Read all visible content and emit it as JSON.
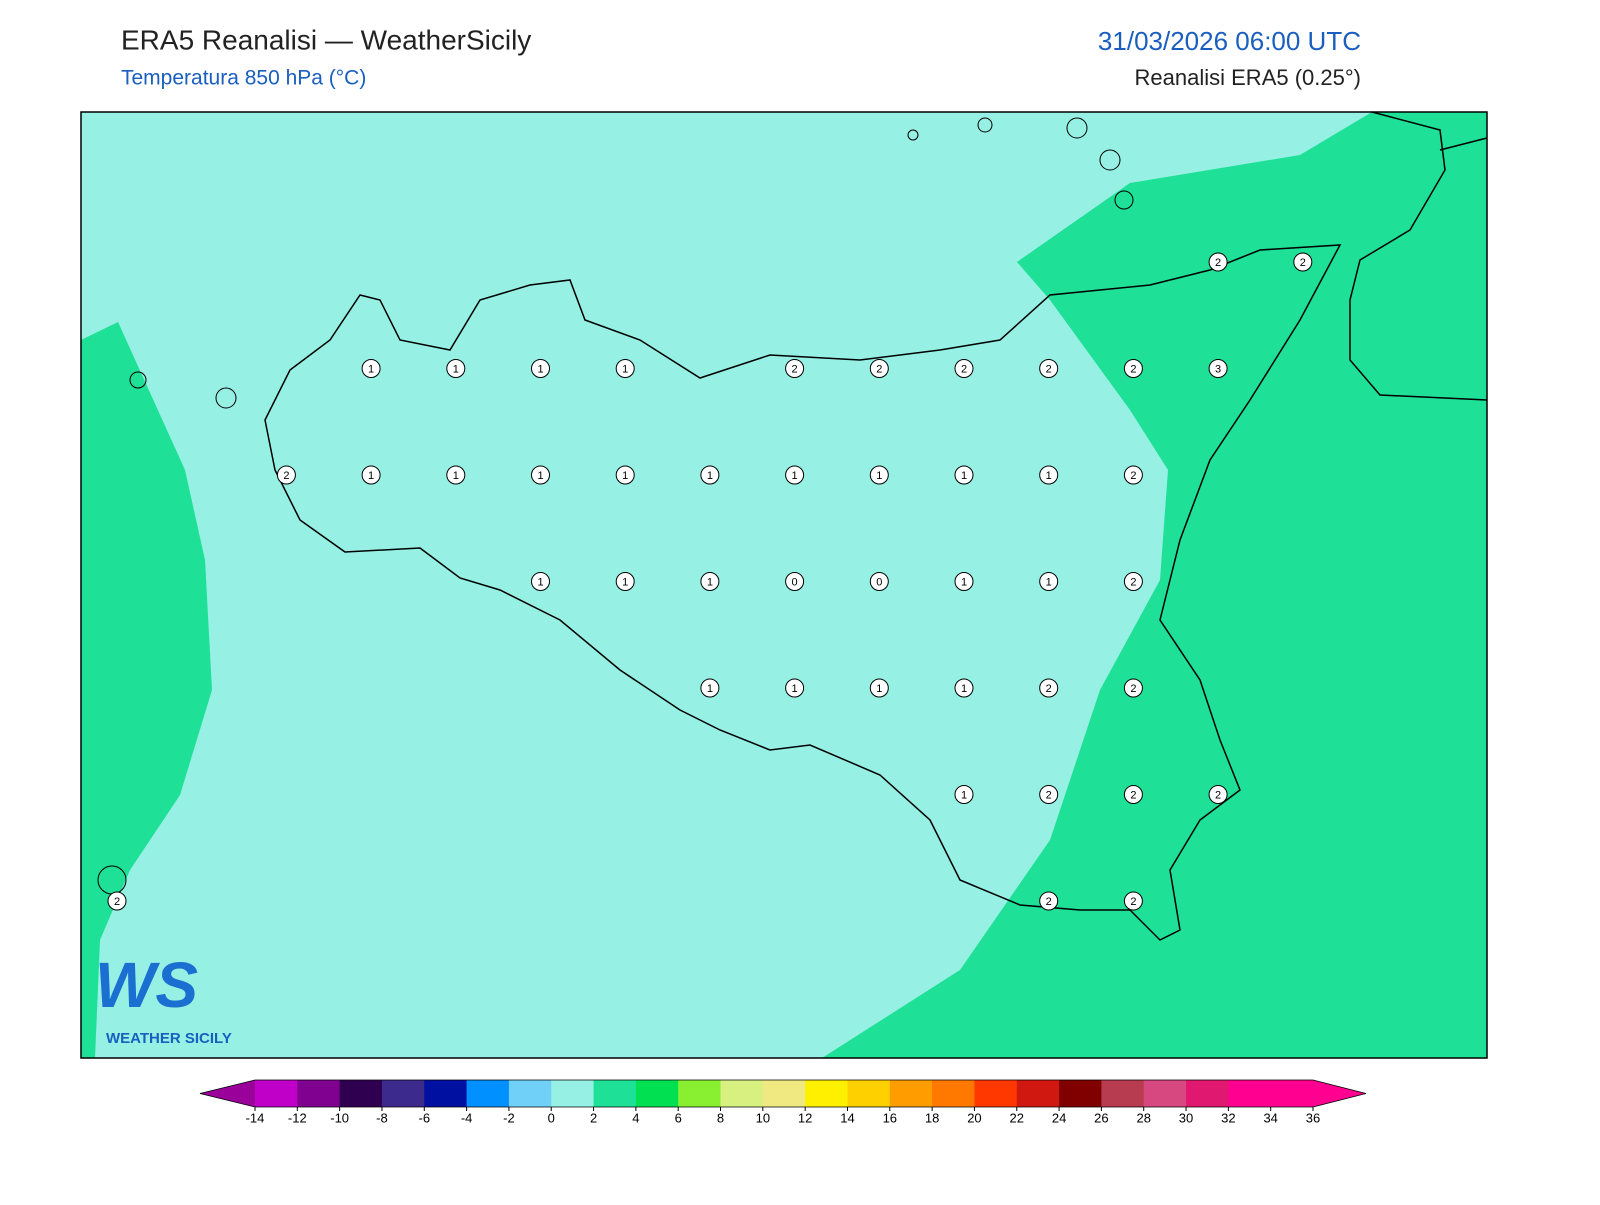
{
  "header": {
    "title": "ERA5 Reanalisi — WeatherSicily",
    "subtitle": "Temperatura 850 hPa (°C)",
    "datetime": "31/03/2026 06:00 UTC",
    "source": "Reanalisi ERA5 (0.25°)"
  },
  "stations": {
    "rows": [
      [
        null,
        null,
        null,
        null,
        null,
        null,
        null,
        null,
        null,
        null,
        null,
        null,
        null,
        2,
        2
      ],
      [
        null,
        null,
        null,
        1,
        1,
        1,
        1,
        null,
        2,
        2,
        2,
        2,
        2,
        3,
        null
      ],
      [
        null,
        null,
        2,
        1,
        1,
        1,
        1,
        1,
        1,
        1,
        1,
        1,
        2,
        null,
        null
      ],
      [
        null,
        null,
        null,
        null,
        null,
        1,
        1,
        1,
        0,
        0,
        1,
        1,
        2,
        null,
        null
      ],
      [
        null,
        null,
        null,
        null,
        null,
        null,
        null,
        1,
        1,
        1,
        1,
        2,
        2,
        null,
        null
      ],
      [
        null,
        null,
        null,
        null,
        null,
        null,
        null,
        null,
        null,
        null,
        1,
        2,
        2,
        2,
        null
      ],
      [
        2,
        null,
        null,
        null,
        null,
        null,
        null,
        null,
        null,
        null,
        null,
        2,
        2,
        null,
        null
      ]
    ]
  },
  "colorbar": {
    "ticks": [
      -14,
      -12,
      -10,
      -8,
      -6,
      -4,
      -2,
      0,
      2,
      4,
      6,
      8,
      10,
      12,
      14,
      16,
      18,
      20,
      22,
      24,
      26,
      28,
      30,
      32,
      34,
      36
    ],
    "colors": [
      "#9a009a",
      "#c000c8",
      "#800090",
      "#300050",
      "#3c2a8c",
      "#0010a0",
      "#0090ff",
      "#70d0f8",
      "#96f0e4",
      "#1ee096",
      "#00e050",
      "#88f030",
      "#d8f080",
      "#f0e880",
      "#fff000",
      "#ffd000",
      "#ff9c00",
      "#ff7800",
      "#ff3800",
      "#d01810",
      "#800000",
      "#b83c50",
      "#d84880",
      "#e01870",
      "#ff0090",
      "#ff0090",
      "#ff0090"
    ]
  },
  "logo": {
    "mark": "WS",
    "text": "WEATHER SICILY"
  }
}
